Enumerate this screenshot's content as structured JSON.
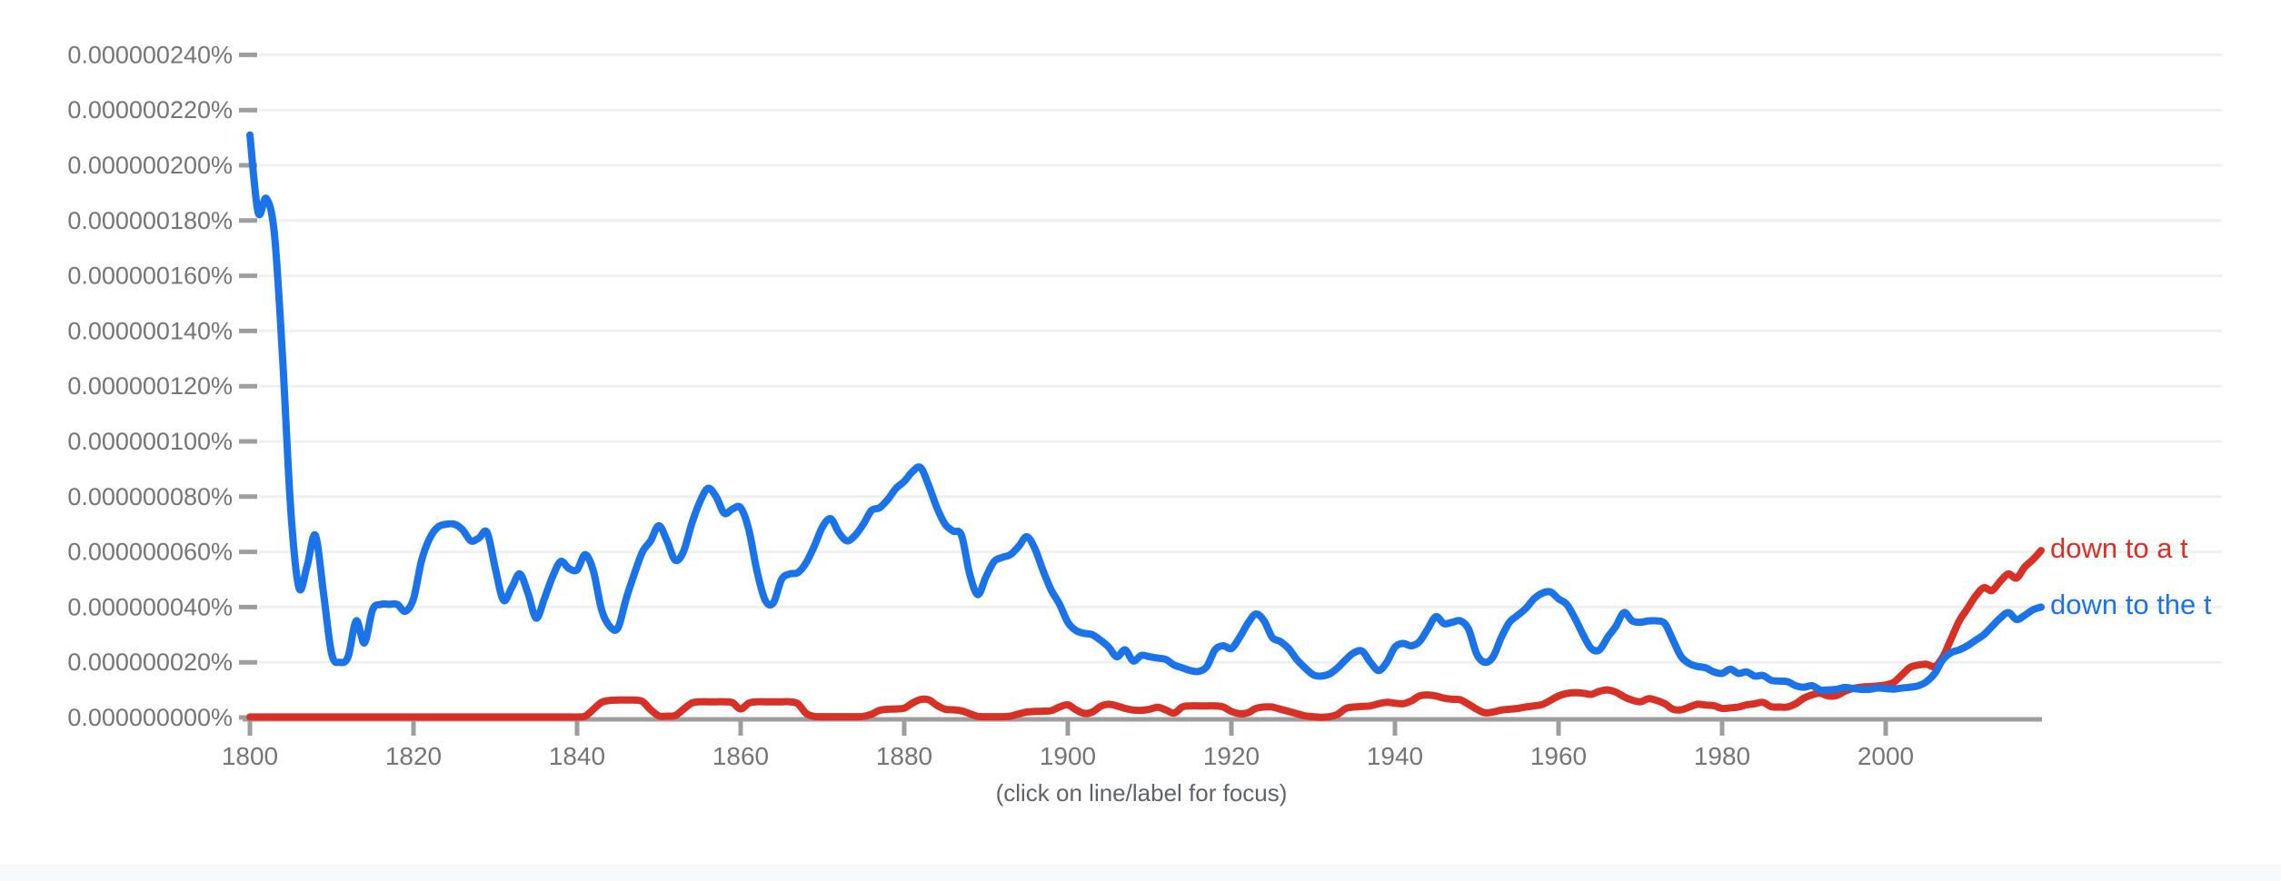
{
  "chart": {
    "caption": "(click on line/label for focus)"
  },
  "colors": {
    "series_red": "#d93025",
    "series_blue": "#1a73e8",
    "gridline": "#f0f0f0",
    "axis": "#9e9e9e",
    "tick_label": "#757575",
    "caption_text": "#5f6368",
    "bottom_band": "#f8f9fa"
  },
  "chart_data": {
    "type": "line",
    "title": "",
    "xlabel": "",
    "ylabel": "",
    "grid": true,
    "legend_position": "right-of-line-ends",
    "x_range": [
      1800,
      2019
    ],
    "y_range_percent": [
      0,
      2.4e-07
    ],
    "y_unit": "percent, values stored as multiples of 1e-8 percent",
    "x_tick_labels": [
      "1800",
      "1820",
      "1840",
      "1860",
      "1880",
      "1900",
      "1920",
      "1940",
      "1960",
      "1980",
      "2000"
    ],
    "y_tick_labels": [
      "0.000000000%",
      "0.000000020%",
      "0.000000040%",
      "0.000000060%",
      "0.000000080%",
      "0.000000100%",
      "0.000000120%",
      "0.000000140%",
      "0.000000160%",
      "0.000000180%",
      "0.000000200%",
      "0.000000220%",
      "0.000000240%"
    ],
    "series": [
      {
        "name": "down to a t",
        "color": "#d93025",
        "start_year": 1800,
        "step": 1,
        "values_e8": [
          0.02,
          0.02,
          0.02,
          0.02,
          0.02,
          0.02,
          0.02,
          0.02,
          0.02,
          0.02,
          0.02,
          0.02,
          0.02,
          0.02,
          0.02,
          0.02,
          0.02,
          0.02,
          0.02,
          0.02,
          0.02,
          0.02,
          0.02,
          0.02,
          0.02,
          0.02,
          0.02,
          0.02,
          0.02,
          0.02,
          0.02,
          0.02,
          0.02,
          0.02,
          0.02,
          0.02,
          0.02,
          0.02,
          0.02,
          0.02,
          0.02,
          0.05,
          0.3,
          0.55,
          0.62,
          0.63,
          0.63,
          0.63,
          0.58,
          0.28,
          0.06,
          0.05,
          0.07,
          0.3,
          0.52,
          0.57,
          0.57,
          0.57,
          0.57,
          0.54,
          0.31,
          0.52,
          0.57,
          0.57,
          0.57,
          0.57,
          0.57,
          0.5,
          0.15,
          0.04,
          0.03,
          0.03,
          0.03,
          0.03,
          0.03,
          0.04,
          0.12,
          0.26,
          0.3,
          0.31,
          0.34,
          0.52,
          0.65,
          0.64,
          0.44,
          0.3,
          0.28,
          0.24,
          0.14,
          0.04,
          0.03,
          0.03,
          0.03,
          0.05,
          0.13,
          0.2,
          0.22,
          0.23,
          0.25,
          0.38,
          0.46,
          0.28,
          0.15,
          0.2,
          0.4,
          0.48,
          0.42,
          0.33,
          0.27,
          0.26,
          0.3,
          0.37,
          0.27,
          0.16,
          0.38,
          0.42,
          0.42,
          0.42,
          0.42,
          0.38,
          0.22,
          0.14,
          0.17,
          0.33,
          0.38,
          0.38,
          0.3,
          0.22,
          0.14,
          0.06,
          0.03,
          0.01,
          0.03,
          0.12,
          0.33,
          0.38,
          0.4,
          0.42,
          0.5,
          0.55,
          0.52,
          0.5,
          0.6,
          0.78,
          0.82,
          0.78,
          0.7,
          0.66,
          0.64,
          0.48,
          0.3,
          0.17,
          0.2,
          0.27,
          0.3,
          0.33,
          0.38,
          0.42,
          0.47,
          0.62,
          0.78,
          0.87,
          0.9,
          0.88,
          0.84,
          0.95,
          1.0,
          0.92,
          0.75,
          0.63,
          0.57,
          0.68,
          0.62,
          0.5,
          0.3,
          0.28,
          0.38,
          0.48,
          0.45,
          0.43,
          0.33,
          0.35,
          0.38,
          0.46,
          0.5,
          0.55,
          0.39,
          0.38,
          0.38,
          0.5,
          0.7,
          0.82,
          0.88,
          0.78,
          0.8,
          0.95,
          1.05,
          1.1,
          1.12,
          1.14,
          1.18,
          1.28,
          1.55,
          1.82,
          1.9,
          1.93,
          1.85,
          2.2,
          2.85,
          3.5,
          3.95,
          4.4,
          4.7,
          4.6,
          4.93,
          5.2,
          5.05,
          5.45,
          5.72,
          6.05
        ]
      },
      {
        "name": "down to the t",
        "color": "#1a73e8",
        "start_year": 1800,
        "step": 1,
        "values_e8": [
          21.1,
          18.3,
          18.8,
          17.5,
          13.0,
          7.5,
          4.7,
          5.5,
          6.6,
          4.5,
          2.3,
          2.0,
          2.2,
          3.5,
          2.7,
          3.9,
          4.1,
          4.1,
          4.1,
          3.85,
          4.3,
          5.7,
          6.5,
          6.9,
          7.0,
          7.0,
          6.8,
          6.4,
          6.5,
          6.7,
          5.4,
          4.25,
          4.7,
          5.2,
          4.5,
          3.6,
          4.3,
          5.1,
          5.65,
          5.4,
          5.35,
          5.9,
          5.3,
          3.9,
          3.3,
          3.25,
          4.3,
          5.2,
          6.0,
          6.4,
          6.95,
          6.4,
          5.7,
          6.0,
          7.0,
          7.8,
          8.3,
          8.0,
          7.4,
          7.55,
          7.6,
          6.8,
          5.3,
          4.25,
          4.15,
          5.0,
          5.2,
          5.25,
          5.6,
          6.2,
          6.9,
          7.2,
          6.7,
          6.4,
          6.6,
          7.0,
          7.5,
          7.6,
          7.9,
          8.3,
          8.55,
          8.9,
          9.05,
          8.4,
          7.6,
          7.0,
          6.75,
          6.6,
          5.2,
          4.45,
          5.1,
          5.65,
          5.8,
          5.9,
          6.2,
          6.55,
          6.1,
          5.3,
          4.6,
          4.1,
          3.45,
          3.15,
          3.05,
          3.0,
          2.8,
          2.55,
          2.2,
          2.45,
          2.05,
          2.25,
          2.2,
          2.15,
          2.1,
          1.9,
          1.8,
          1.7,
          1.67,
          1.85,
          2.45,
          2.6,
          2.5,
          2.9,
          3.4,
          3.75,
          3.5,
          2.9,
          2.75,
          2.5,
          2.1,
          1.8,
          1.55,
          1.5,
          1.58,
          1.8,
          2.1,
          2.35,
          2.4,
          2.0,
          1.7,
          2.0,
          2.55,
          2.68,
          2.6,
          2.75,
          3.2,
          3.65,
          3.4,
          3.45,
          3.5,
          3.2,
          2.3,
          2.0,
          2.2,
          2.9,
          3.45,
          3.7,
          3.95,
          4.3,
          4.5,
          4.55,
          4.3,
          4.1,
          3.6,
          3.0,
          2.5,
          2.45,
          2.9,
          3.3,
          3.8,
          3.5,
          3.45,
          3.5,
          3.5,
          3.4,
          2.8,
          2.2,
          1.95,
          1.85,
          1.8,
          1.65,
          1.6,
          1.75,
          1.6,
          1.65,
          1.5,
          1.52,
          1.35,
          1.32,
          1.3,
          1.15,
          1.1,
          1.15,
          1.0,
          1.0,
          1.02,
          1.09,
          1.05,
          1.02,
          1.02,
          1.07,
          1.05,
          1.03,
          1.07,
          1.1,
          1.15,
          1.3,
          1.6,
          2.1,
          2.35,
          2.45,
          2.6,
          2.8,
          3.0,
          3.3,
          3.6,
          3.8,
          3.55,
          3.7,
          3.9,
          4.0
        ]
      }
    ]
  }
}
